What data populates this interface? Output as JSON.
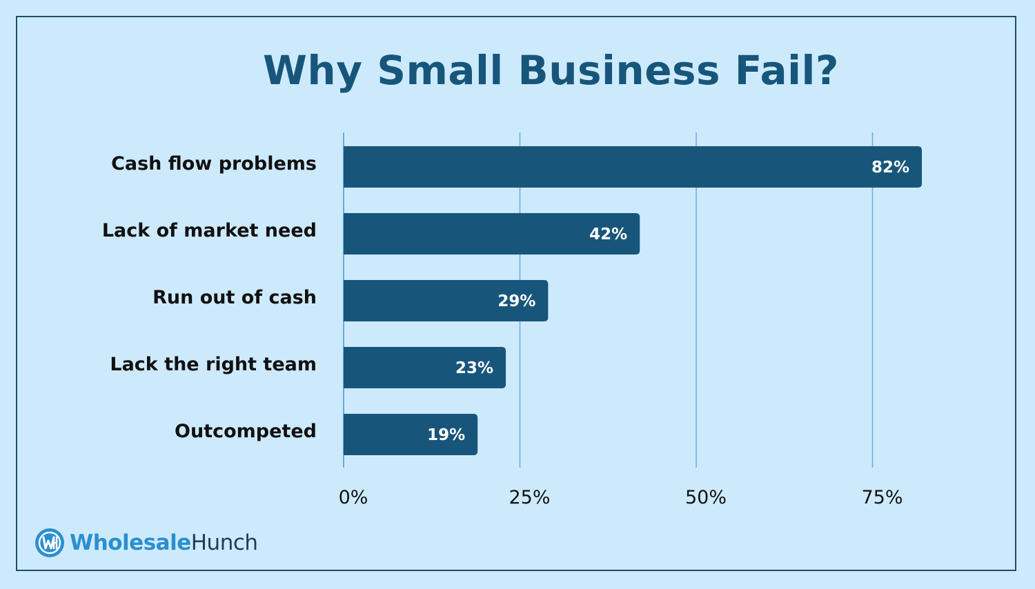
{
  "chart_data": {
    "type": "bar",
    "orientation": "horizontal",
    "title": "Why Small Business Fail?",
    "categories": [
      "Cash flow problems",
      "Lack of market need",
      "Run out of cash",
      "Lack the right team",
      "Outcompeted"
    ],
    "values": [
      82,
      42,
      29,
      23,
      19
    ],
    "value_labels": [
      "82%",
      "42%",
      "29%",
      "23%",
      "19%"
    ],
    "xticks": [
      0,
      25,
      50,
      75
    ],
    "xtick_labels": [
      "0%",
      "25%",
      "50%",
      "75%"
    ],
    "xlim": [
      0,
      75
    ],
    "grid": true,
    "bar_color": "#17567a",
    "grid_color": "#6aaad8"
  },
  "brand": {
    "name_part1": "Wholesale",
    "name_part2": "Hunch",
    "icon": "wh-logo-icon",
    "accent": "#2a8fd0"
  }
}
